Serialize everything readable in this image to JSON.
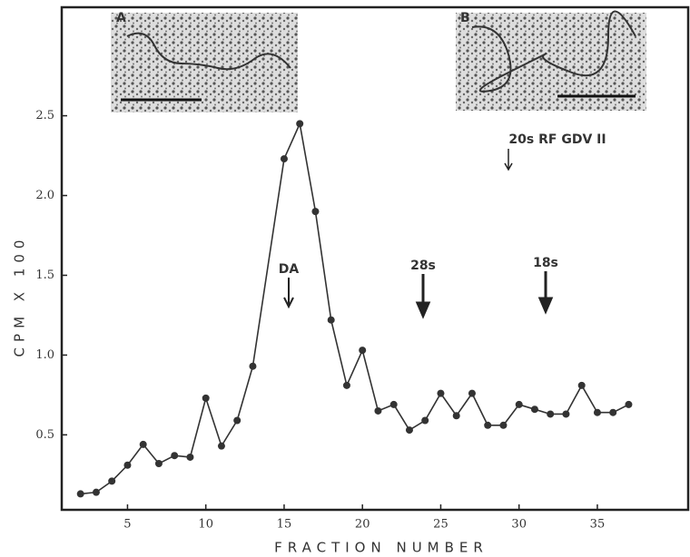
{
  "chart_data": {
    "type": "line",
    "x_label": "FRACTION NUMBER",
    "y_label": "CPM X 100",
    "annotations": [
      "A",
      "B",
      "DA",
      "28s",
      "18s",
      "20s RF GDV II"
    ],
    "x": [
      2,
      3,
      4,
      5,
      6,
      7,
      8,
      9,
      10,
      11,
      12,
      13,
      15,
      16,
      17,
      18,
      19,
      20,
      21,
      22,
      23,
      24,
      25,
      26,
      27,
      28,
      29,
      30,
      31,
      32,
      33,
      34,
      35,
      36,
      37
    ],
    "series": [
      {
        "color": "#333333",
        "values": [
          0.13,
          0.14,
          0.21,
          0.31,
          0.44,
          0.32,
          0.37,
          0.36,
          0.73,
          0.43,
          0.59,
          0.93,
          2.23,
          2.45,
          1.9,
          1.22,
          0.81,
          1.03,
          0.65,
          0.69,
          0.53,
          0.59,
          0.76,
          0.62,
          0.76,
          0.56,
          0.56,
          0.69,
          0.66,
          0.63,
          0.63,
          0.81,
          0.64,
          0.64,
          0.69
        ]
      }
    ],
    "xlim": [
      0.8,
      40.8
    ],
    "ylim": [
      0.03,
      3.18
    ],
    "xticks": [
      5,
      10,
      15,
      20,
      25,
      30,
      35
    ],
    "yticks": [
      0.5,
      {
        "value": 1,
        "label": "1.0"
      },
      1.5,
      {
        "value": 2,
        "label": "2.0"
      },
      2.5
    ]
  }
}
